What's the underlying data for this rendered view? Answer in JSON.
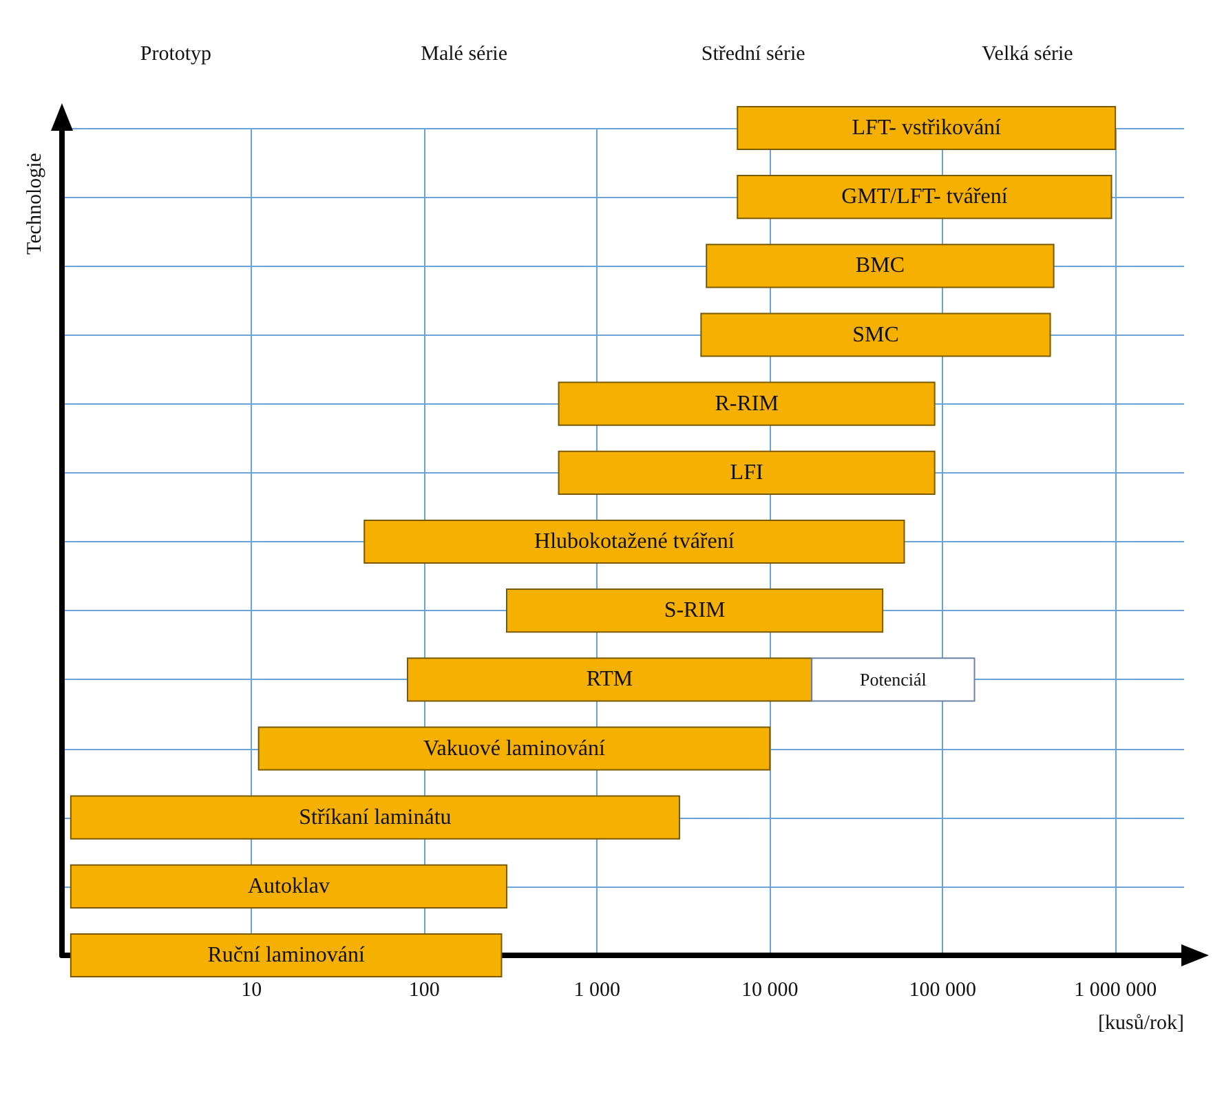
{
  "chart_data": {
    "type": "bar",
    "orientation": "horizontal",
    "log": "x",
    "xlabel": "[kusů/rok]",
    "ylabel": "Technologie",
    "annotations": [
      "Prototyp",
      "Malé série",
      "Střední série",
      "Velká série"
    ],
    "categories": [
      "LFT- vstřikování",
      "GMT/LFT- tváření",
      "BMC",
      "SMC",
      "R-RIM",
      "LFI",
      "Hlubokotažené tváření",
      "S-RIM",
      "RTM",
      "Vakuové laminování",
      "Stříkaní laminátu",
      "Autoklav",
      "Ruční laminování"
    ],
    "series": [
      {
        "color": "#f5b000",
        "base": [
          6500,
          6500,
          4300,
          4000,
          600,
          600,
          45,
          300,
          80,
          11,
          0.9,
          0.9,
          0.9
        ],
        "values": [
          993500,
          943500,
          435700,
          416000,
          89400,
          89400,
          59955,
          44700,
          17420,
          9989,
          2999.1,
          299.1,
          279.1
        ]
      },
      {
        "name": "Potenciál",
        "color": "#ffffff",
        "base": [
          null,
          null,
          null,
          null,
          null,
          null,
          null,
          null,
          17500,
          null,
          null,
          null,
          null
        ],
        "values": [
          null,
          null,
          null,
          null,
          null,
          null,
          null,
          null,
          135500,
          null,
          null,
          null,
          null
        ]
      }
    ],
    "xlim": [
      0.8,
      2500000
    ],
    "xticks": [
      10,
      100,
      {
        "value": 1000,
        "label": "1 000"
      },
      {
        "value": 10000,
        "label": "10 000"
      },
      {
        "value": 100000,
        "label": "100 000"
      },
      {
        "value": 1000000,
        "label": "1 000 000"
      }
    ],
    "grid": true,
    "legend": false,
    "tick_labels": "x"
  }
}
